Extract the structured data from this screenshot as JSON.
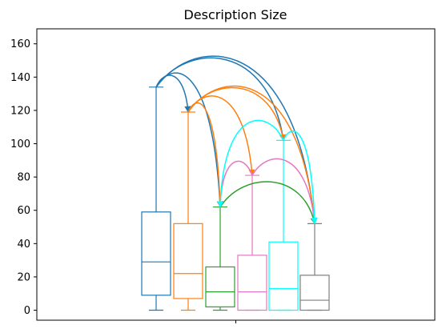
{
  "chart_data": {
    "type": "box",
    "title": "Description Size",
    "xlabel": "",
    "ylabel": "",
    "ylim": [
      -6,
      169
    ],
    "yticks": [
      0,
      20,
      40,
      60,
      80,
      100,
      120,
      140,
      160
    ],
    "xticks": [
      ""
    ],
    "grid": false,
    "legend": false,
    "boxes": [
      {
        "color": "#1f77b4",
        "whisker_low": 0,
        "q1": 9,
        "median": 29,
        "q3": 59,
        "whisker_high": 134
      },
      {
        "color": "#ff7f0e",
        "whisker_low": 0,
        "q1": 7,
        "median": 22,
        "q3": 52,
        "whisker_high": 119
      },
      {
        "color": "#2ca02c",
        "whisker_low": 0,
        "q1": 2,
        "median": 11,
        "q3": 26,
        "whisker_high": 62
      },
      {
        "color": "#e377c2",
        "whisker_low": 0,
        "q1": 0,
        "median": 11,
        "q3": 33,
        "whisker_high": 81
      },
      {
        "color": "#00ffff",
        "whisker_low": 0,
        "q1": 0,
        "median": 13,
        "q3": 41,
        "whisker_high": 102
      },
      {
        "color": "#7f7f7f",
        "whisker_low": 0,
        "q1": 0,
        "median": 6,
        "q3": 21,
        "whisker_high": 52
      }
    ],
    "arrows": [
      {
        "from": 0,
        "to": 1,
        "color": "#1f77b4"
      },
      {
        "from": 0,
        "to": 2,
        "color": "#1f77b4"
      },
      {
        "from": 0,
        "to": 4,
        "color": "#1f77b4"
      },
      {
        "from": 0,
        "to": 5,
        "color": "#1f77b4"
      },
      {
        "from": 1,
        "to": 2,
        "color": "#ff7f0e"
      },
      {
        "from": 1,
        "to": 3,
        "color": "#ff7f0e"
      },
      {
        "from": 1,
        "to": 4,
        "color": "#ff7f0e"
      },
      {
        "from": 1,
        "to": 5,
        "color": "#ff7f0e"
      },
      {
        "from": 2,
        "to": 5,
        "color": "#2ca02c"
      },
      {
        "from": 3,
        "to": 2,
        "color": "#e377c2"
      },
      {
        "from": 3,
        "to": 5,
        "color": "#e377c2"
      },
      {
        "from": 4,
        "to": 2,
        "color": "#00ffff"
      },
      {
        "from": 4,
        "to": 5,
        "color": "#00ffff"
      }
    ]
  }
}
